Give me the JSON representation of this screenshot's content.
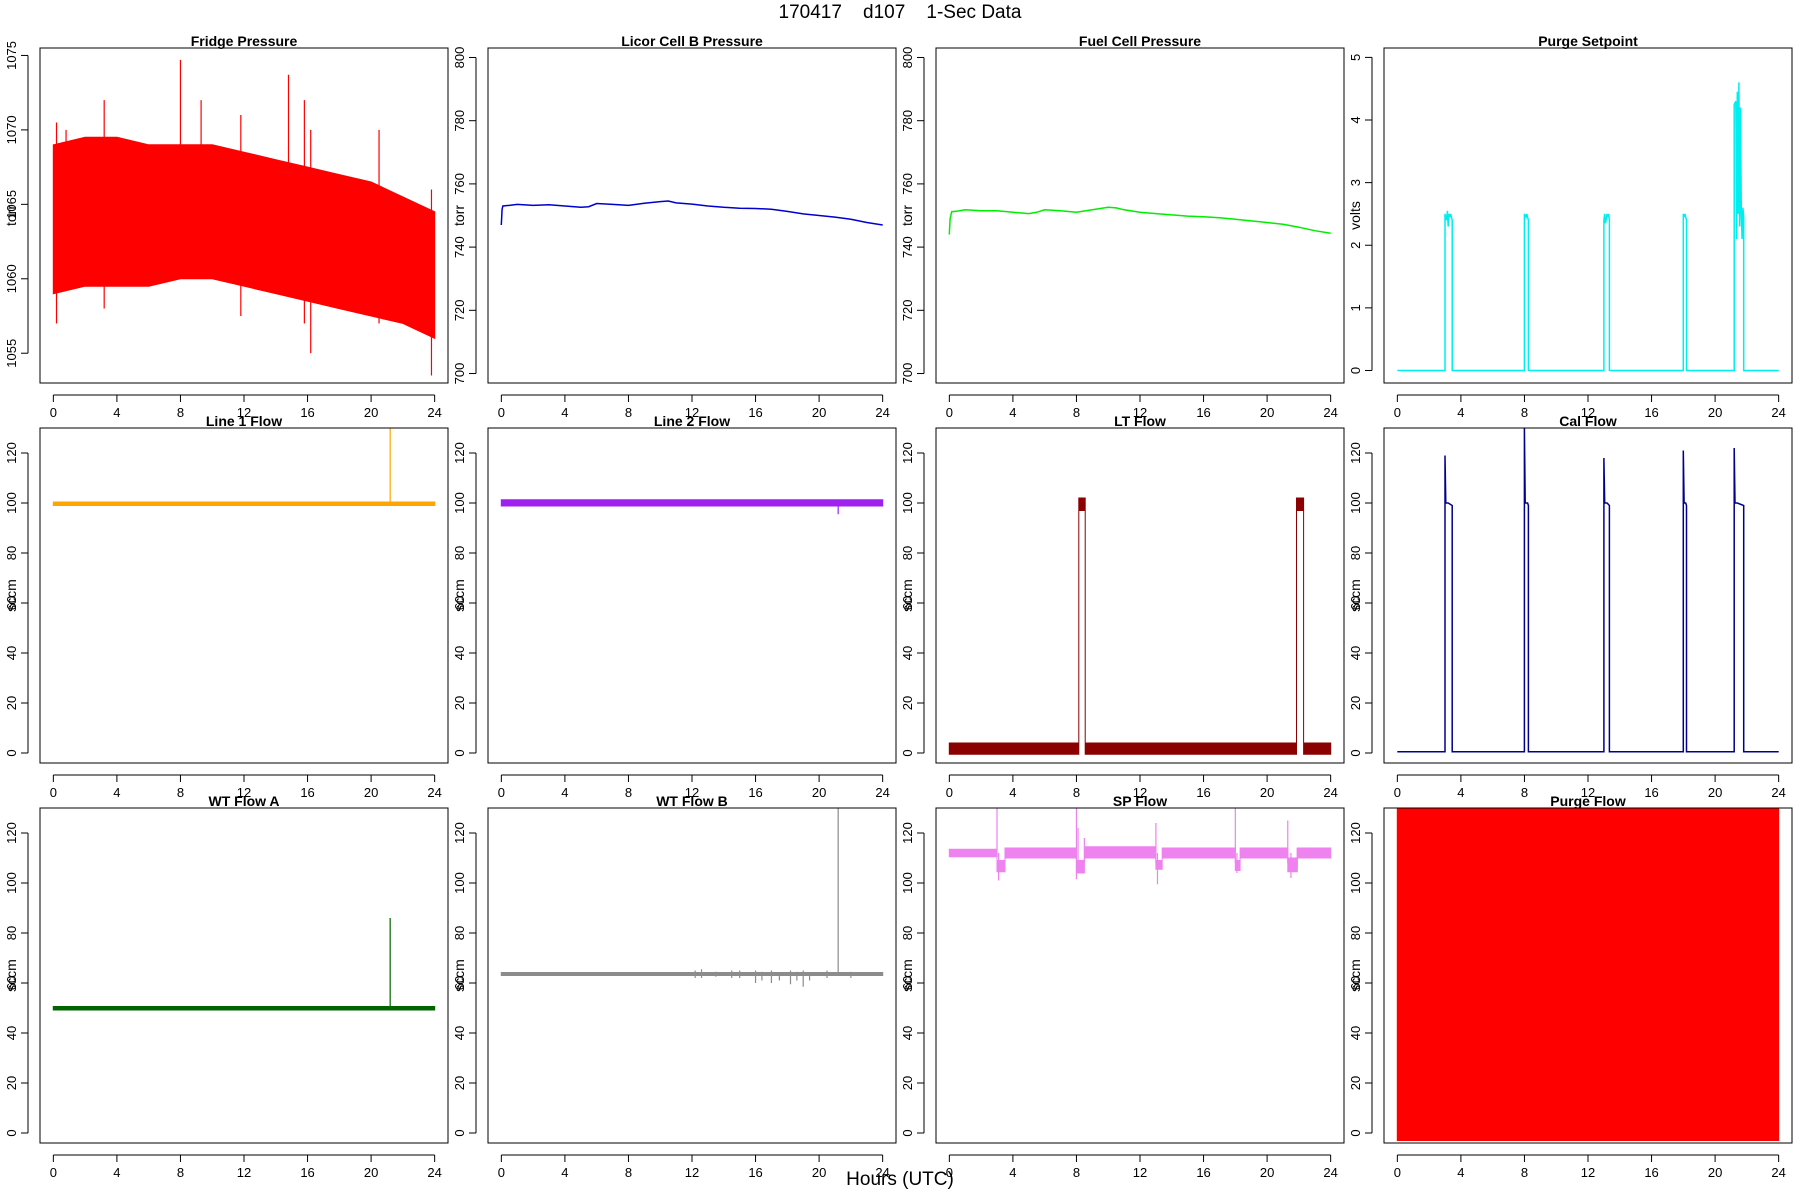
{
  "page": {
    "title": "170417    d107    1-Sec Data",
    "xaxis_title": "Hours (UTC)"
  },
  "chart_data": [
    {
      "type": "line",
      "title": "Fridge Pressure",
      "xlabel": "",
      "ylabel": "torr",
      "color": "#FF0000",
      "xlim": [
        0,
        24
      ],
      "ylim": [
        1053,
        1075.5
      ],
      "xticks": [
        0,
        4,
        8,
        12,
        16,
        20,
        24
      ],
      "yticks": [
        1055,
        1060,
        1065,
        1070,
        1075
      ],
      "series": [
        {
          "style": "band",
          "x": [
            0,
            2,
            4,
            6,
            8,
            10,
            12,
            14,
            16,
            18,
            20,
            22,
            24
          ],
          "low": [
            1059,
            1059.5,
            1059.5,
            1059.5,
            1060,
            1060,
            1059.5,
            1059,
            1058.5,
            1058,
            1057.5,
            1057,
            1056
          ],
          "high": [
            1069,
            1069.5,
            1069.5,
            1069,
            1069,
            1069,
            1068.5,
            1068,
            1067.5,
            1067,
            1066.5,
            1065.5,
            1064.5
          ]
        },
        {
          "style": "spikes",
          "x": [
            0.2,
            0.8,
            3.2,
            8,
            9.3,
            11.8,
            14.8,
            15.8,
            16.2,
            20.5,
            23.8
          ],
          "low": [
            1057,
            1060,
            1058,
            1060,
            1061,
            1057.5,
            1060,
            1057,
            1055,
            1057,
            1053.5
          ],
          "high": [
            1070.5,
            1070,
            1072,
            1074.7,
            1072,
            1071,
            1073.7,
            1072,
            1070,
            1070,
            1066
          ]
        }
      ]
    },
    {
      "type": "line",
      "title": "Licor Cell B Pressure",
      "xlabel": "",
      "ylabel": "torr",
      "color": "#0000CD",
      "xlim": [
        0,
        24
      ],
      "ylim": [
        697,
        803
      ],
      "xticks": [
        0,
        4,
        8,
        12,
        16,
        20,
        24
      ],
      "yticks": [
        700,
        720,
        740,
        760,
        780,
        800
      ],
      "series": [
        {
          "style": "line",
          "x": [
            0,
            0.05,
            0.1,
            0.5,
            1,
            2,
            3,
            4,
            5,
            5.5,
            6,
            7,
            8,
            9,
            10,
            10.5,
            11,
            12,
            13,
            14,
            15,
            16,
            17,
            18,
            19,
            20,
            21,
            22,
            23,
            24
          ],
          "y": [
            747,
            752,
            753,
            753.2,
            753.5,
            753.2,
            753.4,
            753,
            752.6,
            752.8,
            753.8,
            753.5,
            753.2,
            753.9,
            754.4,
            754.6,
            754,
            753.6,
            753,
            752.6,
            752.3,
            752.2,
            752,
            751.3,
            750.5,
            750,
            749.5,
            748.8,
            747.8,
            747
          ]
        }
      ]
    },
    {
      "type": "line",
      "title": "Fuel Cell Pressure",
      "xlabel": "",
      "ylabel": "torr",
      "color": "#00EE00",
      "xlim": [
        0,
        24
      ],
      "ylim": [
        697,
        803
      ],
      "xticks": [
        0,
        4,
        8,
        12,
        16,
        20,
        24
      ],
      "yticks": [
        700,
        720,
        740,
        760,
        780,
        800
      ],
      "series": [
        {
          "style": "line",
          "x": [
            0,
            0.05,
            0.15,
            0.5,
            1,
            2,
            3,
            4,
            5,
            5.5,
            6,
            7,
            8,
            9,
            10,
            10.5,
            11,
            12,
            13,
            14,
            15,
            16,
            17,
            18,
            19,
            20,
            21,
            22,
            23,
            24
          ],
          "y": [
            744,
            749,
            751.2,
            751.4,
            751.8,
            751.5,
            751.5,
            751,
            750.6,
            751,
            751.8,
            751.5,
            751,
            751.8,
            752.6,
            752.4,
            751.8,
            751,
            750.6,
            750.2,
            749.8,
            749.6,
            749.3,
            748.8,
            748.3,
            747.8,
            747.2,
            746.3,
            745.2,
            744.4
          ]
        }
      ]
    },
    {
      "type": "line",
      "title": "Purge Setpoint",
      "xlabel": "",
      "ylabel": "volts",
      "color": "#00EEEE",
      "xlim": [
        0,
        24
      ],
      "ylim": [
        -0.2,
        5.15
      ],
      "xticks": [
        0,
        4,
        8,
        12,
        16,
        20,
        24
      ],
      "yticks": [
        0,
        1,
        2,
        3,
        4,
        5
      ],
      "series": [
        {
          "style": "line",
          "x": [
            0,
            3.0,
            3.0,
            3.1,
            3.15,
            3.2,
            3.25,
            3.3,
            3.35,
            3.45,
            3.45,
            8.0,
            8.0,
            8.1,
            8.15,
            8.25,
            8.25,
            13.0,
            13.0,
            13.05,
            13.1,
            13.2,
            13.25,
            13.3,
            13.35,
            13.35,
            18.0,
            18.0,
            18.05,
            18.1,
            18.2,
            18.2,
            21.2,
            21.2,
            21.3,
            21.35,
            21.4,
            21.45,
            21.5,
            21.55,
            21.6,
            21.65,
            21.7,
            21.75,
            21.8,
            21.8,
            24
          ],
          "y": [
            0,
            0,
            2.5,
            2.4,
            2.55,
            2.3,
            2.5,
            2.45,
            2.5,
            2.4,
            0,
            0,
            2.5,
            2.45,
            2.5,
            2.4,
            0,
            0,
            2.4,
            2.5,
            2.35,
            2.5,
            2.45,
            2.5,
            2.4,
            0,
            0,
            2.5,
            2.45,
            2.5,
            2.4,
            0,
            0,
            4.25,
            4.3,
            2.1,
            4.45,
            2.5,
            4.6,
            2.3,
            4.2,
            2.5,
            2.1,
            2.6,
            2.45,
            0,
            0
          ]
        }
      ]
    },
    {
      "type": "line",
      "title": "Line 1 Flow",
      "xlabel": "",
      "ylabel": "sccm",
      "color": "#FFA500",
      "xlim": [
        0,
        24
      ],
      "ylim": [
        -4,
        130
      ],
      "xticks": [
        0,
        4,
        8,
        12,
        16,
        20,
        24
      ],
      "yticks": [
        0,
        20,
        40,
        60,
        80,
        100,
        120
      ],
      "series": [
        {
          "style": "band",
          "x": [
            0,
            24
          ],
          "low": [
            99,
            99
          ],
          "high": [
            100.4,
            100.4
          ]
        },
        {
          "style": "spikes",
          "x": [
            21.2
          ],
          "low": [
            99
          ],
          "high": [
            130
          ]
        }
      ]
    },
    {
      "type": "line",
      "title": "Line 2 Flow",
      "xlabel": "",
      "ylabel": "sccm",
      "color": "#A020F0",
      "xlim": [
        0,
        24
      ],
      "ylim": [
        -4,
        130
      ],
      "xticks": [
        0,
        4,
        8,
        12,
        16,
        20,
        24
      ],
      "yticks": [
        0,
        20,
        40,
        60,
        80,
        100,
        120
      ],
      "series": [
        {
          "style": "band",
          "x": [
            0,
            24
          ],
          "low": [
            98.8,
            98.8
          ],
          "high": [
            101.3,
            101.3
          ]
        },
        {
          "style": "spikes",
          "x": [
            21.2
          ],
          "low": [
            95.5
          ],
          "high": [
            100
          ]
        }
      ]
    },
    {
      "type": "line",
      "title": "LT Flow",
      "xlabel": "",
      "ylabel": "sccm",
      "color": "#8B0000",
      "xlim": [
        0,
        24
      ],
      "ylim": [
        -4,
        130
      ],
      "xticks": [
        0,
        4,
        8,
        12,
        16,
        20,
        24
      ],
      "yticks": [
        0,
        20,
        40,
        60,
        80,
        100,
        120
      ],
      "series": [
        {
          "style": "band",
          "x": [
            0,
            8.15,
            8.15,
            8.55,
            8.55,
            21.85,
            21.85,
            22.3,
            22.3,
            24
          ],
          "low": [
            -0.5,
            -0.5,
            97,
            97,
            -0.5,
            -0.5,
            97,
            97,
            -0.5,
            -0.5
          ],
          "high": [
            4,
            4,
            102,
            102,
            4,
            4,
            102,
            102,
            4,
            4
          ]
        }
      ]
    },
    {
      "type": "line",
      "title": "Cal Flow",
      "xlabel": "",
      "ylabel": "sccm",
      "color": "#00008B",
      "xlim": [
        0,
        24
      ],
      "ylim": [
        -4,
        130
      ],
      "xticks": [
        0,
        4,
        8,
        12,
        16,
        20,
        24
      ],
      "yticks": [
        0,
        20,
        40,
        60,
        80,
        100,
        120
      ],
      "series": [
        {
          "style": "line",
          "x": [
            0,
            3.0,
            3.0,
            3.05,
            3.2,
            3.45,
            3.45,
            8.0,
            8.0,
            8.05,
            8.2,
            8.25,
            8.25,
            13.0,
            13.0,
            13.05,
            13.2,
            13.35,
            13.35,
            18.0,
            18.0,
            18.05,
            18.15,
            18.2,
            18.2,
            21.2,
            21.2,
            21.25,
            21.4,
            21.8,
            21.8,
            24
          ],
          "y": [
            0.5,
            0.5,
            119,
            100,
            100,
            99,
            0.5,
            0.5,
            130,
            100,
            100,
            99,
            0.5,
            0.5,
            118,
            100,
            100,
            99,
            0.5,
            0.5,
            121,
            100,
            100,
            99,
            0.5,
            0.5,
            122,
            100,
            100,
            99,
            0.5,
            0.5
          ]
        }
      ]
    },
    {
      "type": "line",
      "title": "WT Flow A",
      "xlabel": "",
      "ylabel": "sccm",
      "color": "#006400",
      "xlim": [
        0,
        24
      ],
      "ylim": [
        -4,
        130
      ],
      "xticks": [
        0,
        4,
        8,
        12,
        16,
        20,
        24
      ],
      "yticks": [
        0,
        20,
        40,
        60,
        80,
        100,
        120
      ],
      "series": [
        {
          "style": "band",
          "x": [
            0,
            24
          ],
          "low": [
            49.2,
            49.2
          ],
          "high": [
            50.6,
            50.6
          ]
        },
        {
          "style": "spikes",
          "x": [
            21.2
          ],
          "low": [
            49.5
          ],
          "high": [
            86
          ]
        }
      ]
    },
    {
      "type": "line",
      "title": "WT Flow B",
      "xlabel": "",
      "ylabel": "sccm",
      "color": "#8C8C8C",
      "xlim": [
        0,
        24
      ],
      "ylim": [
        -4,
        130
      ],
      "xticks": [
        0,
        4,
        8,
        12,
        16,
        20,
        24
      ],
      "yticks": [
        0,
        20,
        40,
        60,
        80,
        100,
        120
      ],
      "series": [
        {
          "style": "band",
          "x": [
            0,
            24
          ],
          "low": [
            63,
            63
          ],
          "high": [
            64.2,
            64.2
          ]
        },
        {
          "style": "spikes",
          "x": [
            12.2,
            12.6,
            13.5,
            14.5,
            15,
            16,
            16.4,
            17,
            17.5,
            18.2,
            18.6,
            19,
            19.4,
            20.5,
            21.2,
            22
          ],
          "low": [
            62,
            62,
            62.5,
            62,
            62,
            60,
            61,
            60,
            61,
            59.5,
            61,
            58.5,
            61,
            62,
            63,
            62
          ],
          "high": [
            65,
            65.5,
            64.5,
            65,
            65,
            65,
            64.5,
            65,
            64,
            65,
            64.5,
            65,
            64,
            65,
            130,
            64.5
          ]
        }
      ]
    },
    {
      "type": "line",
      "title": "SP Flow",
      "xlabel": "",
      "ylabel": "sccm",
      "color": "#EE82EE",
      "xlim": [
        0,
        24
      ],
      "ylim": [
        -4,
        130
      ],
      "xticks": [
        0,
        4,
        8,
        12,
        16,
        20,
        24
      ],
      "yticks": [
        0,
        20,
        40,
        60,
        80,
        100,
        120
      ],
      "series": [
        {
          "style": "band",
          "x": [
            0,
            3.0,
            3.0,
            3.5,
            3.5,
            8.0,
            8.0,
            8.5,
            8.5,
            13.0,
            13.0,
            13.4,
            13.4,
            18.0,
            18.0,
            18.3,
            18.3,
            21.3,
            21.3,
            21.9,
            21.9,
            24
          ],
          "low": [
            110.5,
            110.5,
            104.5,
            104.5,
            110,
            110,
            104,
            104,
            110,
            110,
            105.5,
            105.5,
            110,
            110,
            105,
            105,
            110,
            110,
            104.5,
            104.5,
            110,
            110
          ],
          "high": [
            113.5,
            113.5,
            109,
            109,
            114,
            114,
            109,
            109,
            114.5,
            114.5,
            109,
            109,
            114,
            114,
            109,
            109,
            114,
            114,
            110,
            110,
            114,
            114
          ]
        },
        {
          "style": "spikes",
          "x": [
            3.0,
            3.1,
            8.0,
            8.1,
            8.5,
            13.0,
            13.1,
            18.0,
            18.1,
            21.3,
            21.5,
            21.9
          ],
          "low": [
            110,
            101,
            101.5,
            104,
            108,
            108,
            99.5,
            108,
            104,
            108,
            102,
            106
          ],
          "high": [
            130,
            112,
            130,
            122,
            118,
            124,
            112,
            130,
            112,
            125,
            112,
            114
          ]
        }
      ]
    },
    {
      "type": "line",
      "title": "Purge Flow",
      "xlabel": "",
      "ylabel": "sccm",
      "color": "#FF0000",
      "xlim": [
        0,
        24
      ],
      "ylim": [
        -4,
        130
      ],
      "xticks": [
        0,
        4,
        8,
        12,
        16,
        20,
        24
      ],
      "yticks": [
        0,
        20,
        40,
        60,
        80,
        100,
        120
      ],
      "series": [
        {
          "style": "band",
          "x": [
            0,
            24
          ],
          "low": [
            -3,
            -3
          ],
          "high": [
            130,
            130
          ]
        }
      ]
    }
  ]
}
